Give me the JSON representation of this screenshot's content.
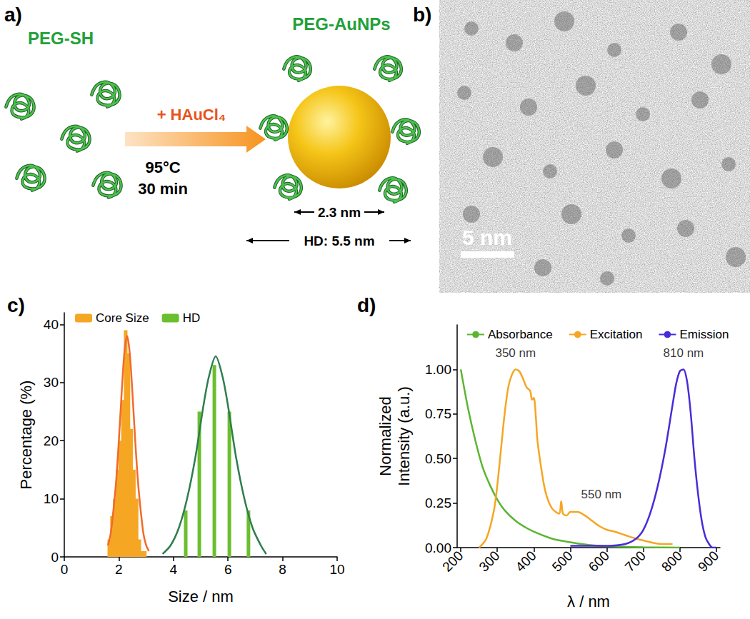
{
  "scheme": {
    "panel_label": "a)",
    "reactant": "PEG-SH",
    "reagent": "+ HAuCl₄",
    "conditions": [
      "95°C",
      "30 min"
    ],
    "product": "PEG-AuNPs",
    "core_label": "2.3 nm",
    "hd_label": "HD: 5.5 nm"
  },
  "micrograph": {
    "panel_label": "b)",
    "scale_bar": "5 nm"
  },
  "chart_data": [
    {
      "panel_label": "c)",
      "type": "bar",
      "x_label": "Size / nm",
      "y_label": "Percentage (%)",
      "xlim": [
        0,
        10
      ],
      "xticks": [
        0,
        2,
        4,
        6,
        8,
        10
      ],
      "ylim": [
        0,
        42
      ],
      "yticks": [
        0,
        10,
        20,
        30,
        40
      ],
      "grid": false,
      "legend": "upper left",
      "series": [
        {
          "name": "Core Size",
          "type": "bar",
          "color": "#f5a623",
          "x": [
            1.65,
            1.75,
            1.85,
            1.95,
            2.05,
            2.15,
            2.25,
            2.35,
            2.45,
            2.55,
            2.65,
            2.75,
            2.85,
            2.95
          ],
          "values": [
            3,
            7,
            10,
            15,
            20,
            27,
            39,
            35,
            22,
            15,
            10,
            3,
            1,
            1
          ]
        },
        {
          "name": "HD",
          "type": "bar",
          "color": "#6bbf2e",
          "x": [
            4.45,
            4.95,
            5.5,
            6.05,
            6.75
          ],
          "values": [
            8,
            25,
            33,
            25,
            8
          ]
        },
        {
          "type": "line",
          "color": "#f26a2a",
          "x": [
            1.6,
            1.7,
            1.8,
            1.9,
            2.0,
            2.1,
            2.2,
            2.3,
            2.4,
            2.5,
            2.6,
            2.7,
            2.8,
            2.9,
            3.0,
            3.1
          ],
          "values": [
            2,
            4,
            8,
            13,
            20,
            28,
            35,
            38,
            35,
            28,
            20,
            13,
            8,
            4,
            2,
            1
          ]
        },
        {
          "type": "line",
          "color": "#2e7d4f",
          "x": [
            3.6,
            3.9,
            4.2,
            4.5,
            4.8,
            5.1,
            5.3,
            5.55,
            5.8,
            6.0,
            6.3,
            6.6,
            6.9,
            7.2,
            7.4
          ],
          "values": [
            0.5,
            2,
            5,
            10,
            17,
            26,
            31,
            34.5,
            31,
            26,
            17,
            10,
            5,
            2,
            0.5
          ]
        }
      ]
    },
    {
      "panel_label": "d)",
      "type": "line",
      "x_label": "λ / nm",
      "y_label": "Normalized\nIntensity (a.u.)",
      "xlim": [
        190,
        910
      ],
      "xticks": [
        200,
        300,
        400,
        500,
        600,
        700,
        800,
        900
      ],
      "ylim": [
        0,
        1.25
      ],
      "yticks": [
        {
          "value": 0,
          "label": "0.00"
        },
        {
          "value": 0.25,
          "label": "0.25"
        },
        {
          "value": 0.5,
          "label": "0.50"
        },
        {
          "value": 0.75,
          "label": "0.75"
        },
        {
          "value": 1,
          "label": "1.00"
        }
      ],
      "grid": false,
      "legend": "top",
      "annotations": [
        {
          "text": "350 nm",
          "x": 350,
          "y": 1.09
        },
        {
          "text": "550 nm",
          "x": 585,
          "y": 0.3
        },
        {
          "text": "810 nm",
          "x": 810,
          "y": 1.09
        }
      ],
      "series": [
        {
          "name": "Absorbance",
          "color": "#5cb531",
          "x": [
            200,
            220,
            240,
            260,
            280,
            300,
            320,
            350,
            380,
            400,
            450,
            500,
            550,
            600,
            700,
            800
          ],
          "values": [
            1.0,
            0.78,
            0.6,
            0.45,
            0.35,
            0.27,
            0.21,
            0.15,
            0.11,
            0.09,
            0.05,
            0.03,
            0.015,
            0.008,
            0.002,
            0.0
          ]
        },
        {
          "name": "Excitation",
          "color": "#f5a623",
          "x": [
            250,
            270,
            290,
            300,
            310,
            320,
            330,
            340,
            350,
            360,
            370,
            380,
            390,
            395,
            400,
            405,
            410,
            420,
            430,
            440,
            450,
            460,
            470,
            475,
            480,
            490,
            500,
            520,
            540,
            560,
            580,
            600,
            620,
            650,
            680,
            700,
            750,
            780
          ],
          "values": [
            0.0,
            0.05,
            0.2,
            0.35,
            0.55,
            0.75,
            0.9,
            0.97,
            1.0,
            0.99,
            0.95,
            0.9,
            0.88,
            0.83,
            0.84,
            0.75,
            0.6,
            0.45,
            0.33,
            0.26,
            0.22,
            0.2,
            0.19,
            0.26,
            0.19,
            0.18,
            0.2,
            0.2,
            0.18,
            0.15,
            0.12,
            0.1,
            0.09,
            0.07,
            0.05,
            0.04,
            0.02,
            0.02
          ]
        },
        {
          "name": "Emission",
          "color": "#4b2bd9",
          "x": [
            500,
            600,
            650,
            680,
            700,
            720,
            740,
            760,
            780,
            790,
            800,
            810,
            820,
            830,
            840,
            850,
            860,
            870,
            880,
            890,
            900
          ],
          "values": [
            0.01,
            0.01,
            0.02,
            0.05,
            0.1,
            0.2,
            0.35,
            0.55,
            0.8,
            0.92,
            0.99,
            1.0,
            0.93,
            0.75,
            0.5,
            0.3,
            0.15,
            0.06,
            0.02,
            0.0,
            0.0
          ]
        }
      ]
    }
  ]
}
